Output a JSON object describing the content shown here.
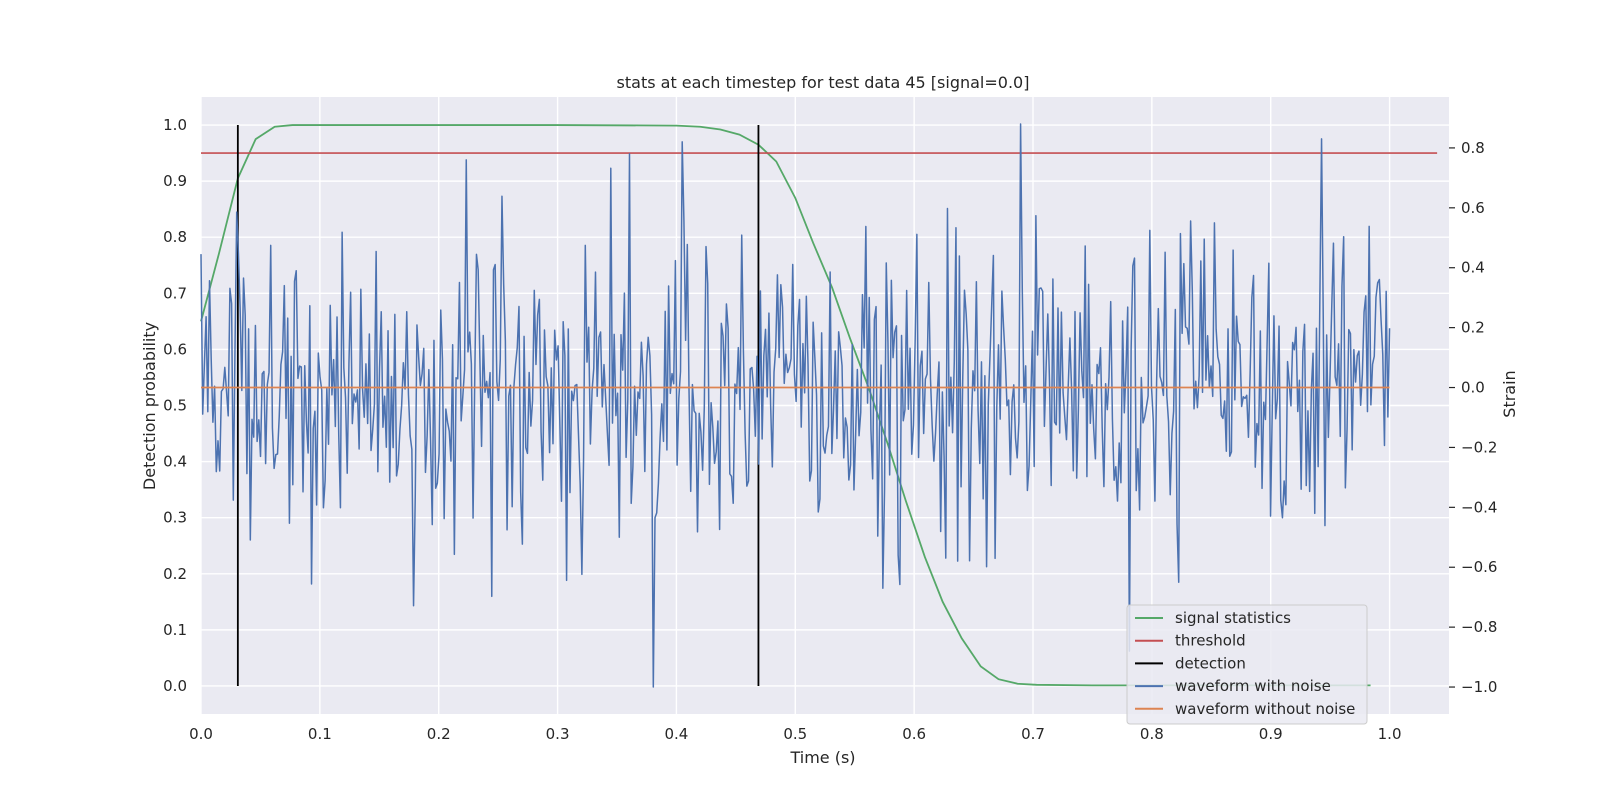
{
  "chart_data": {
    "type": "line",
    "title": "stats at each timestep for test data 45 [signal=0.0]",
    "xlabel": "Time (s)",
    "ylabel": "Detection probability",
    "y2label": "Strain",
    "xlim": [
      0.0,
      1.05
    ],
    "ylim": [
      -0.05,
      1.05
    ],
    "y2lim": [
      -1.09,
      0.97
    ],
    "x_ticks": [
      "0.0",
      "0.1",
      "0.2",
      "0.3",
      "0.4",
      "0.5",
      "0.6",
      "0.7",
      "0.8",
      "0.9",
      "1.0"
    ],
    "y_ticks": [
      "0.0",
      "0.1",
      "0.2",
      "0.3",
      "0.4",
      "0.5",
      "0.6",
      "0.7",
      "0.8",
      "0.9",
      "1.0"
    ],
    "y2_ticks": [
      "−1.0",
      "−0.8",
      "−0.6",
      "−0.4",
      "−0.2",
      "0.0",
      "0.2",
      "0.4",
      "0.6",
      "0.8"
    ],
    "grid": true,
    "legend_position": "lower-right",
    "colors": {
      "background": "#eaeaf2",
      "grid": "#ffffff",
      "signal_statistics": "#55a868",
      "threshold": "#c44e52",
      "detection": "#000000",
      "waveform_with_noise": "#4c72b0",
      "waveform_without_noise": "#dd8452"
    },
    "series": [
      {
        "name": "signal statistics",
        "axis": "left",
        "x": [
          0.0,
          0.015,
          0.031,
          0.046,
          0.062,
          0.077,
          0.093,
          0.2,
          0.3,
          0.4,
          0.42,
          0.437,
          0.453,
          0.469,
          0.484,
          0.5,
          0.515,
          0.531,
          0.546,
          0.562,
          0.578,
          0.593,
          0.609,
          0.624,
          0.64,
          0.656,
          0.671,
          0.687,
          0.703,
          0.75,
          0.8,
          0.9,
          0.984
        ],
        "y": [
          0.65,
          0.77,
          0.905,
          0.975,
          0.997,
          1.0,
          1.0,
          1.0,
          1.0,
          0.999,
          0.997,
          0.992,
          0.983,
          0.965,
          0.935,
          0.87,
          0.79,
          0.71,
          0.62,
          0.53,
          0.43,
          0.33,
          0.23,
          0.15,
          0.085,
          0.035,
          0.012,
          0.004,
          0.002,
          0.001,
          0.001,
          0.001,
          0.001
        ]
      },
      {
        "name": "threshold",
        "axis": "left",
        "x": [
          0.0,
          1.04
        ],
        "y": [
          0.95,
          0.95
        ]
      },
      {
        "name": "detection",
        "axis": "left",
        "x_lines": [
          0.031,
          0.469
        ],
        "y_range": [
          0.0,
          1.0
        ]
      },
      {
        "name": "waveform with noise",
        "axis": "right",
        "x_range": [
          0.0,
          1.0
        ],
        "points": 700,
        "y_range_observed": [
          -1.0,
          0.88
        ],
        "y_std": 0.25,
        "peaks": [
          {
            "x": 0.031,
            "y": 0.45
          },
          {
            "x": 0.38,
            "y": -1.0
          },
          {
            "x": 0.405,
            "y": 0.82
          },
          {
            "x": 0.36,
            "y": 0.78
          },
          {
            "x": 0.69,
            "y": 0.88
          },
          {
            "x": 0.943,
            "y": 0.83
          },
          {
            "x": 0.573,
            "y": -0.67
          },
          {
            "x": 0.823,
            "y": -0.65
          }
        ]
      },
      {
        "name": "waveform without noise",
        "axis": "right",
        "x": [
          0.0,
          1.0
        ],
        "y": [
          0.0,
          0.0
        ]
      }
    ]
  }
}
